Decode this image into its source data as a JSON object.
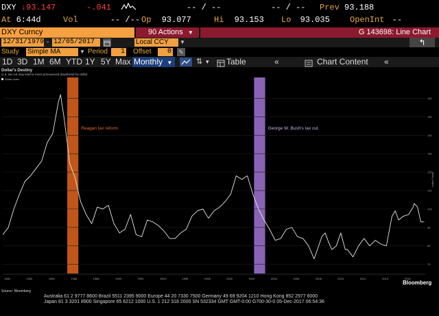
{
  "quote": {
    "ticker": "DXY",
    "last": "93.147",
    "last_arrow": "↓",
    "change": "-.041",
    "at_label": "At",
    "time": "6:44d",
    "vol_label": "Vol",
    "vol_value": "-- /--",
    "op_label": "Op",
    "op_value": "93.077",
    "hi_label": "Hi",
    "hi_value": "93.153",
    "lo_label": "Lo",
    "lo_value": "93.035",
    "prev_label": "Prev",
    "prev_value": "93.188",
    "openint_label": "OpenInt",
    "openint_value": "--",
    "dashes": "-- / --"
  },
  "command": {
    "security": "DXY Curncy",
    "actions": "90 Actions",
    "function": "G 143698: Line Chart"
  },
  "dates": {
    "start": "12/31/1979",
    "end": "12/05/2017",
    "currency": "Local CCY"
  },
  "study": {
    "study_label": "Study",
    "study_value": "Simple MA",
    "period_label": "Period",
    "period_value": "1",
    "offset_label": "Offset",
    "offset_value": "0"
  },
  "toolbar": {
    "periods": [
      "1D",
      "3D",
      "1M",
      "6M",
      "YTD",
      "1Y",
      "5Y",
      "Max"
    ],
    "frequency": "Monthly",
    "table": "Table",
    "chart_content": "Chart Content"
  },
  "footer": {
    "source": "Source: Bloomberg",
    "brand": "Bloomberg",
    "line1": "Australia 61 2 9777 8600 Brazil 5511 2395 9000 Europe 44 20 7330 7500 Germany 49 69 9204 1210 Hong Kong 852 2977 6000",
    "line2": "Japan 81 3 3201 8900 Singapore 65 6212 1000 U.S. 1 212 318 2000 SN 532334 GMT GMT-0:00 G700-30-0 05-Dec-2017 06:54:36"
  },
  "chart_data": {
    "type": "line",
    "title": "Dollar's Destiny",
    "subtitle": "U.S. tax cut may lead to more pronounced downtrend for dollar",
    "legend": [
      "Dollar index"
    ],
    "ylabel": "Index Points",
    "ylim": [
      65,
      168
    ],
    "y_ticks": [
      70,
      80,
      90,
      100,
      110,
      120,
      130,
      140,
      150,
      160
    ],
    "xlim": [
      1980,
      2018
    ],
    "x_ticks": [
      1980,
      1982,
      1984,
      1986,
      1988,
      1990,
      1992,
      1994,
      1996,
      1998,
      2000,
      2002,
      2004,
      2006,
      2008,
      2010,
      2012,
      2014,
      2016
    ],
    "series": [
      {
        "name": "Dollar index",
        "color": "#e8e8e8",
        "x": [
          1980.0,
          1980.5,
          1981.0,
          1981.5,
          1982.0,
          1982.5,
          1983.0,
          1983.5,
          1984.0,
          1984.5,
          1985.0,
          1985.2,
          1985.5,
          1985.8,
          1986.0,
          1986.5,
          1987.0,
          1987.5,
          1988.0,
          1988.5,
          1989.0,
          1989.5,
          1990.0,
          1990.5,
          1991.0,
          1991.5,
          1992.0,
          1992.5,
          1993.0,
          1993.5,
          1994.0,
          1994.5,
          1995.0,
          1995.5,
          1996.0,
          1996.5,
          1997.0,
          1997.5,
          1998.0,
          1998.5,
          1999.0,
          1999.5,
          2000.0,
          2000.5,
          2001.0,
          2001.5,
          2002.0,
          2002.5,
          2003.0,
          2003.5,
          2004.0,
          2004.5,
          2005.0,
          2005.5,
          2006.0,
          2006.5,
          2007.0,
          2007.5,
          2008.0,
          2008.3,
          2008.7,
          2009.0,
          2009.3,
          2009.6,
          2010.0,
          2010.4,
          2010.8,
          2011.0,
          2011.5,
          2012.0,
          2012.5,
          2013.0,
          2013.5,
          2014.0,
          2014.5,
          2015.0,
          2015.3,
          2015.6,
          2016.0,
          2016.5,
          2016.9,
          2017.0,
          2017.3,
          2017.6,
          2017.9
        ],
        "values": [
          86,
          90,
          100,
          108,
          115,
          118,
          122,
          126,
          136,
          141,
          158,
          162,
          150,
          136,
          125,
          117,
          104,
          97,
          92,
          101,
          100,
          102,
          92,
          87,
          89,
          97,
          86,
          85,
          94,
          93,
          91,
          88,
          84,
          84,
          87,
          89,
          96,
          99,
          100,
          95,
          99,
          101,
          104,
          108,
          118,
          116,
          118,
          108,
          100,
          94,
          89,
          83,
          84,
          89,
          90,
          85,
          84,
          80,
          73,
          78,
          85,
          87,
          82,
          78,
          80,
          87,
          78,
          78,
          74,
          80,
          84,
          80,
          83,
          81,
          80,
          96,
          99,
          94,
          96,
          97,
          101,
          103,
          101,
          93,
          93
        ]
      }
    ],
    "annotations": [
      {
        "label": "Reagan tax reform",
        "x_start": 1985.8,
        "x_end": 1986.8,
        "color": "#c0561a"
      },
      {
        "label": "George W. Bush's tax cut",
        "x_start": 2002.6,
        "x_end": 2003.6,
        "color": "#8a63b4"
      }
    ]
  }
}
